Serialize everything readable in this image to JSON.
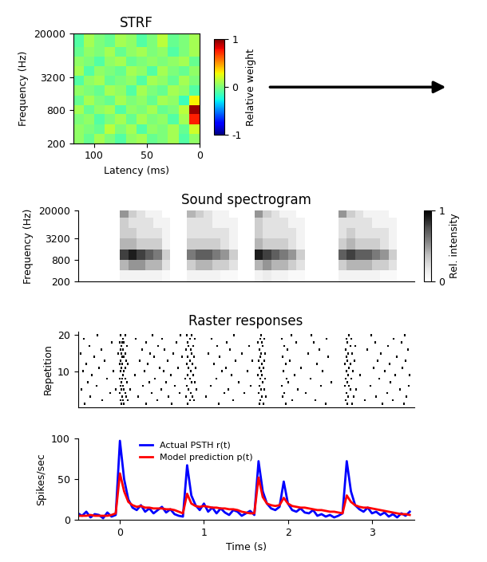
{
  "chart_data": [
    {
      "type": "heatmap",
      "title": "STRF",
      "x_label": "Latency (ms)",
      "y_label": "Frequency (Hz)",
      "log": "y",
      "xlim": [
        120,
        0
      ],
      "xticks": [
        100,
        50,
        0
      ],
      "ylim": [
        200,
        20000
      ],
      "yticks": [
        200,
        800,
        3200,
        20000
      ],
      "x_edges": [
        0,
        10,
        20,
        30,
        40,
        50,
        60,
        70,
        80,
        90,
        100,
        110,
        120
      ],
      "y_edges": [
        200,
        300,
        450,
        680,
        1000,
        1500,
        2300,
        3400,
        5100,
        7700,
        11500,
        20000
      ],
      "cells": [
        [
          0.05,
          -0.1,
          0.1,
          0,
          -0.05,
          0.1,
          0.05,
          -0.1,
          0,
          0.1,
          -0.05,
          0.05
        ],
        [
          0.2,
          -0.05,
          0.1,
          0,
          0.05,
          -0.1,
          0.1,
          0,
          0.15,
          -0.05,
          0,
          0.05
        ],
        [
          0.75,
          0.1,
          -0.1,
          0.05,
          0,
          0.1,
          -0.05,
          0.1,
          0,
          -0.1,
          0.05,
          0
        ],
        [
          0.95,
          0.15,
          0,
          -0.05,
          0.1,
          0,
          0.05,
          -0.1,
          0.1,
          0.05,
          -0.05,
          0.1
        ],
        [
          0.3,
          -0.15,
          0.05,
          0.1,
          -0.05,
          0.05,
          0,
          0.1,
          -0.05,
          0,
          0.1,
          -0.05
        ],
        [
          -0.1,
          0.05,
          0.1,
          -0.05,
          0,
          0.1,
          -0.1,
          0.05,
          0.1,
          -0.05,
          0,
          0.05
        ],
        [
          0,
          0.1,
          -0.05,
          0.05,
          0.1,
          -0.1,
          0.05,
          0,
          -0.05,
          0.1,
          0.05,
          -0.1
        ],
        [
          0.05,
          -0.05,
          0,
          0.1,
          -0.1,
          0.05,
          0.1,
          -0.05,
          0,
          0.05,
          -0.1,
          0.1
        ],
        [
          -0.05,
          0.1,
          0.05,
          0,
          0.05,
          0,
          -0.05,
          0.1,
          0.05,
          -0.1,
          0,
          0.05
        ],
        [
          0.1,
          0,
          -0.1,
          0.05,
          0,
          0.1,
          0.05,
          -0.05,
          0.1,
          0,
          0.05,
          -0.05
        ],
        [
          0.1,
          0,
          -0.05,
          0.15,
          0,
          -0.1,
          0.05,
          0.1,
          -0.05,
          0,
          0.1,
          -0.1
        ]
      ],
      "colorbar": {
        "label": "Relative weight",
        "range": [
          -1,
          1
        ],
        "ticks": [
          -1,
          0,
          1
        ]
      }
    },
    {
      "type": "heatmap",
      "title": "Sound spectrogram",
      "y_label": "Frequency (Hz)",
      "log": "y",
      "tick_labels": "y",
      "xlim": [
        -0.5,
        3.5
      ],
      "ylim": [
        200,
        20000
      ],
      "yticks": [
        200,
        800,
        3200,
        20000
      ],
      "x_edges": [
        -0.5,
        -0.4,
        -0.3,
        -0.2,
        -0.1,
        0.0,
        0.1,
        0.2,
        0.3,
        0.4,
        0.5,
        0.6,
        0.7,
        0.8,
        0.9,
        1.0,
        1.1,
        1.2,
        1.3,
        1.4,
        1.5,
        1.6,
        1.7,
        1.8,
        1.9,
        2.0,
        2.1,
        2.2,
        2.3,
        2.4,
        2.5,
        2.6,
        2.7,
        2.8,
        2.9,
        3.0,
        3.1,
        3.2,
        3.3,
        3.4,
        3.5
      ],
      "y_edges": [
        200,
        400,
        800,
        1600,
        3200,
        6400,
        12800,
        20000
      ],
      "cells": [
        [
          0,
          0,
          0,
          0,
          0,
          0.1,
          0.1,
          0.1,
          0.1,
          0.1,
          0.05,
          0,
          0,
          0.1,
          0.1,
          0.1,
          0.1,
          0.05,
          0.05,
          0,
          0,
          0.1,
          0.15,
          0.1,
          0.1,
          0.05,
          0.05,
          0,
          0,
          0,
          0,
          0.1,
          0.1,
          0.1,
          0.1,
          0.1,
          0.05,
          0.05,
          0,
          0
        ],
        [
          0,
          0,
          0,
          0,
          0,
          0.4,
          0.5,
          0.5,
          0.4,
          0.4,
          0.2,
          0,
          0,
          0.3,
          0.4,
          0.4,
          0.3,
          0.3,
          0.2,
          0,
          0,
          0.4,
          0.5,
          0.4,
          0.4,
          0.3,
          0.2,
          0,
          0,
          0,
          0,
          0.3,
          0.4,
          0.4,
          0.4,
          0.3,
          0.3,
          0.2,
          0,
          0
        ],
        [
          0,
          0,
          0,
          0,
          0,
          0.8,
          0.9,
          0.8,
          0.7,
          0.6,
          0.3,
          0,
          0,
          0.6,
          0.7,
          0.7,
          0.6,
          0.5,
          0.3,
          0,
          0,
          0.9,
          0.8,
          0.7,
          0.6,
          0.5,
          0.3,
          0,
          0,
          0,
          0,
          0.7,
          0.8,
          0.7,
          0.7,
          0.6,
          0.5,
          0.3,
          0,
          0
        ],
        [
          0,
          0,
          0,
          0,
          0,
          0.4,
          0.4,
          0.3,
          0.3,
          0.3,
          0.1,
          0,
          0,
          0.3,
          0.3,
          0.3,
          0.3,
          0.2,
          0.1,
          0,
          0,
          0.4,
          0.3,
          0.3,
          0.3,
          0.2,
          0.1,
          0,
          0,
          0,
          0,
          0.3,
          0.4,
          0.3,
          0.3,
          0.3,
          0.2,
          0.1,
          0,
          0
        ],
        [
          0,
          0,
          0,
          0,
          0,
          0.3,
          0.3,
          0.2,
          0.2,
          0.2,
          0.1,
          0,
          0,
          0.2,
          0.2,
          0.2,
          0.2,
          0.2,
          0.1,
          0,
          0,
          0.3,
          0.2,
          0.2,
          0.2,
          0.2,
          0.1,
          0,
          0,
          0,
          0,
          0.2,
          0.3,
          0.2,
          0.2,
          0.2,
          0.2,
          0.1,
          0,
          0
        ],
        [
          0,
          0,
          0,
          0,
          0,
          0.3,
          0.2,
          0.2,
          0.2,
          0.1,
          0.1,
          0,
          0,
          0.2,
          0.2,
          0.2,
          0.1,
          0.1,
          0.1,
          0,
          0,
          0.3,
          0.2,
          0.2,
          0.2,
          0.1,
          0.1,
          0,
          0,
          0,
          0,
          0.2,
          0.2,
          0.2,
          0.2,
          0.1,
          0.1,
          0.1,
          0,
          0
        ],
        [
          0,
          0,
          0,
          0,
          0,
          0.5,
          0.3,
          0.2,
          0.1,
          0.1,
          0,
          0,
          0,
          0.4,
          0.3,
          0.2,
          0.1,
          0.1,
          0,
          0,
          0,
          0.5,
          0.3,
          0.2,
          0.1,
          0.1,
          0,
          0,
          0,
          0,
          0,
          0.5,
          0.3,
          0.2,
          0.1,
          0.1,
          0.1,
          0,
          0,
          0
        ]
      ],
      "colorbar": {
        "label": "Rel. intensity",
        "range": [
          0,
          1
        ],
        "ticks": [
          0,
          1
        ]
      }
    },
    {
      "type": "raster",
      "title": "Raster responses",
      "y_label": "Repetition",
      "tick_labels": "y",
      "xlim": [
        -0.5,
        3.5
      ],
      "ylim": [
        0,
        21
      ],
      "yticks": [
        10,
        20
      ],
      "spike_times": [
        [
          -0.42,
          0.02,
          0.05,
          0.31,
          0.62,
          0.81,
          1.18,
          1.66,
          1.71,
          1.97,
          2.45,
          2.71,
          2.76,
          3.12,
          3.38
        ],
        [
          -0.21,
          0.01,
          0.04,
          0.09,
          0.44,
          0.83,
          0.88,
          1.35,
          1.67,
          2.05,
          2.33,
          2.69,
          2.92,
          3.25
        ],
        [
          -0.35,
          0.03,
          0.07,
          0.22,
          0.58,
          0.79,
          0.86,
          1.02,
          1.69,
          1.74,
          1.94,
          2.72,
          2.78,
          3.05,
          3.41
        ],
        [
          -0.12,
          0.0,
          0.06,
          0.38,
          0.71,
          0.84,
          1.24,
          1.48,
          1.65,
          1.96,
          2.21,
          2.7,
          3.18
        ],
        [
          -0.46,
          -0.05,
          0.02,
          0.05,
          0.12,
          0.49,
          0.82,
          0.91,
          1.29,
          1.68,
          1.72,
          2.12,
          2.74,
          2.81,
          3.33
        ],
        [
          -0.28,
          0.01,
          0.04,
          0.27,
          0.65,
          0.8,
          1.08,
          1.56,
          1.66,
          1.93,
          2.39,
          2.68,
          2.73,
          2.98,
          3.44
        ],
        [
          -0.38,
          0.02,
          0.08,
          0.35,
          0.55,
          0.85,
          0.89,
          1.41,
          1.7,
          2.0,
          2.52,
          2.71,
          3.22
        ],
        [
          -0.15,
          0.0,
          0.03,
          0.06,
          0.42,
          0.78,
          0.83,
          1.15,
          1.67,
          1.73,
          1.98,
          2.27,
          2.69,
          2.75,
          3.09
        ],
        [
          -0.33,
          0.04,
          0.18,
          0.61,
          0.81,
          0.87,
          1.33,
          1.64,
          1.69,
          2.08,
          2.72,
          2.86,
          3.28,
          3.45
        ],
        [
          -0.44,
          -0.08,
          0.01,
          0.05,
          0.29,
          0.52,
          0.84,
          1.21,
          1.52,
          1.68,
          1.95,
          2.41,
          2.7,
          2.77,
          3.15
        ],
        [
          -0.25,
          0.02,
          0.06,
          0.47,
          0.69,
          0.82,
          0.9,
          1.26,
          1.66,
          1.71,
          2.16,
          2.73,
          3.02,
          3.36
        ],
        [
          -0.4,
          0.0,
          0.03,
          0.09,
          0.33,
          0.8,
          0.86,
          1.12,
          1.69,
          1.97,
          2.35,
          2.68,
          2.74,
          3.21
        ],
        [
          -0.18,
          0.01,
          0.07,
          0.24,
          0.57,
          0.83,
          1.38,
          1.58,
          1.65,
          1.72,
          2.02,
          2.71,
          2.79,
          3.07,
          3.4
        ],
        [
          -0.31,
          0.03,
          0.05,
          0.41,
          0.74,
          0.81,
          0.88,
          1.19,
          1.67,
          1.94,
          2.48,
          2.7,
          3.3
        ],
        [
          -0.47,
          -0.02,
          0.02,
          0.06,
          0.36,
          0.63,
          0.85,
          1.05,
          1.45,
          1.68,
          1.73,
          2.24,
          2.72,
          2.76,
          3.11
        ],
        [
          -0.22,
          0.01,
          0.04,
          0.26,
          0.53,
          0.79,
          0.84,
          1.31,
          1.66,
          1.99,
          2.37,
          2.69,
          2.94,
          3.43
        ],
        [
          -0.36,
          0.02,
          0.08,
          0.45,
          0.82,
          0.87,
          1.16,
          1.54,
          1.7,
          1.96,
          2.74,
          2.8,
          3.19
        ],
        [
          -0.1,
          0.0,
          0.03,
          0.05,
          0.31,
          0.67,
          0.81,
          1.27,
          1.64,
          1.69,
          2.1,
          2.31,
          2.71,
          3.04,
          3.35
        ],
        [
          -0.43,
          0.04,
          0.19,
          0.5,
          0.83,
          0.89,
          1.09,
          1.67,
          1.72,
          1.93,
          2.46,
          2.7,
          2.75,
          3.26
        ],
        [
          -0.27,
          0.01,
          0.06,
          0.39,
          0.72,
          0.8,
          0.85,
          1.36,
          1.68,
          2.04,
          2.28,
          2.73,
          2.99,
          3.39
        ]
      ],
      "color": "#000000"
    },
    {
      "type": "line",
      "x_label": "Time (s)",
      "y_label": "Spikes/sec",
      "legend": "upper left",
      "xlim": [
        -0.5,
        3.5
      ],
      "xticks": [
        0,
        1,
        2,
        3
      ],
      "ylim": [
        0,
        100
      ],
      "yticks": [
        0,
        50,
        100
      ],
      "x": [
        -0.5,
        -0.45,
        -0.4,
        -0.35,
        -0.3,
        -0.25,
        -0.2,
        -0.15,
        -0.1,
        -0.05,
        0.0,
        0.05,
        0.1,
        0.15,
        0.2,
        0.25,
        0.3,
        0.35,
        0.4,
        0.45,
        0.5,
        0.55,
        0.6,
        0.65,
        0.7,
        0.75,
        0.8,
        0.85,
        0.9,
        0.95,
        1.0,
        1.05,
        1.1,
        1.15,
        1.2,
        1.25,
        1.3,
        1.35,
        1.4,
        1.45,
        1.5,
        1.55,
        1.6,
        1.65,
        1.7,
        1.75,
        1.8,
        1.85,
        1.9,
        1.95,
        2.0,
        2.05,
        2.1,
        2.15,
        2.2,
        2.25,
        2.3,
        2.35,
        2.4,
        2.45,
        2.5,
        2.55,
        2.6,
        2.65,
        2.7,
        2.75,
        2.8,
        2.85,
        2.9,
        2.95,
        3.0,
        3.05,
        3.1,
        3.15,
        3.2,
        3.25,
        3.3,
        3.35,
        3.4,
        3.45
      ],
      "series": [
        {
          "name": "Actual PSTH r(t)",
          "color": "#0000ff",
          "values": [
            8,
            5,
            10,
            3,
            7,
            6,
            2,
            9,
            4,
            6,
            97,
            50,
            25,
            15,
            12,
            18,
            10,
            14,
            8,
            12,
            16,
            9,
            13,
            7,
            5,
            4,
            67,
            30,
            18,
            12,
            20,
            10,
            15,
            8,
            14,
            9,
            6,
            12,
            10,
            5,
            8,
            11,
            6,
            72,
            35,
            20,
            14,
            12,
            16,
            47,
            20,
            12,
            10,
            14,
            9,
            8,
            12,
            5,
            7,
            4,
            6,
            3,
            5,
            8,
            72,
            35,
            18,
            13,
            10,
            15,
            8,
            10,
            6,
            9,
            4,
            7,
            3,
            8,
            5,
            10
          ]
        },
        {
          "name": "Model prediction p(t)",
          "color": "#ff0000",
          "values": [
            5,
            5,
            5,
            6,
            5,
            5,
            5,
            5,
            6,
            8,
            57,
            35,
            22,
            18,
            16,
            17,
            15,
            15,
            14,
            14,
            14,
            13,
            13,
            12,
            10,
            8,
            32,
            20,
            17,
            16,
            17,
            16,
            15,
            15,
            14,
            14,
            13,
            13,
            12,
            10,
            9,
            8,
            8,
            52,
            28,
            20,
            18,
            17,
            18,
            27,
            20,
            17,
            16,
            15,
            15,
            14,
            13,
            12,
            12,
            11,
            10,
            10,
            9,
            8,
            30,
            22,
            18,
            16,
            15,
            15,
            14,
            13,
            12,
            11,
            10,
            9,
            8,
            7,
            7,
            6
          ]
        }
      ]
    }
  ]
}
